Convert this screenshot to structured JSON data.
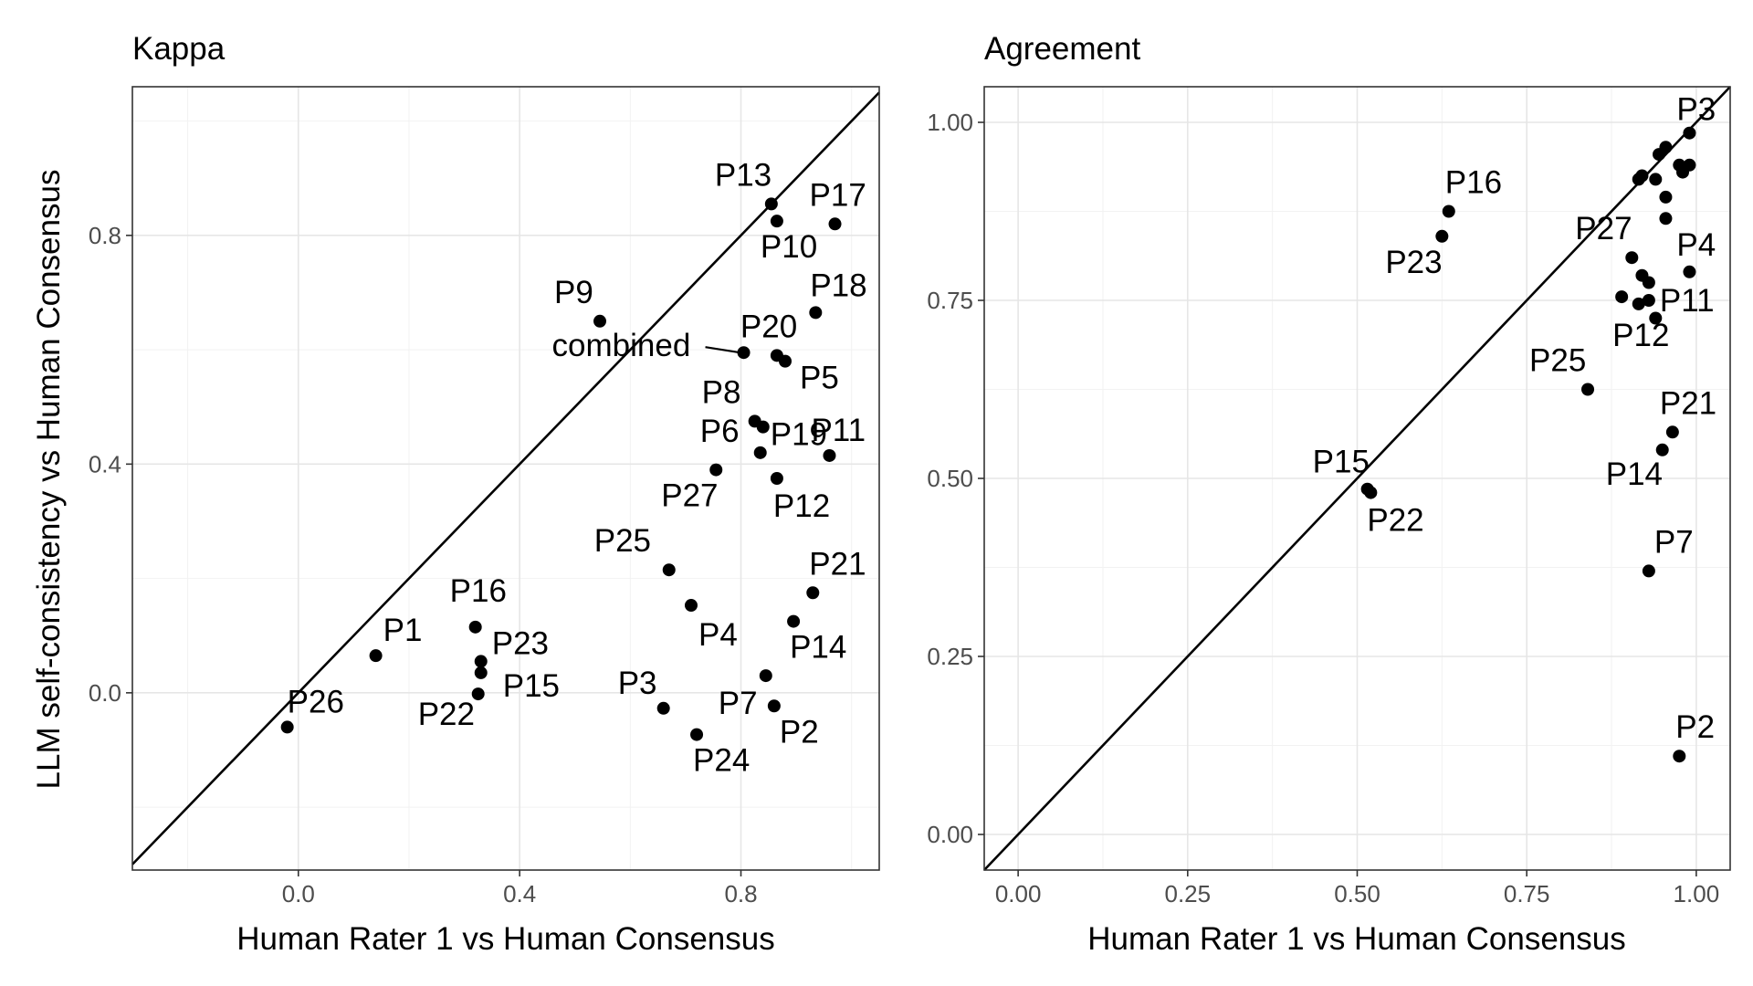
{
  "y_axis_title": "LLM self-consistency vs Human Consensus",
  "chart_data": [
    {
      "type": "scatter",
      "title": "Kappa",
      "xlabel": "Human Rater 1 vs Human Consensus",
      "xlim": [
        -0.3,
        1.05
      ],
      "ylim": [
        -0.31,
        1.06
      ],
      "xticks": [
        0.0,
        0.4,
        0.8
      ],
      "xtick_labels": [
        "0.0",
        "0.4",
        "0.8"
      ],
      "yticks": [
        0.0,
        0.4,
        0.8
      ],
      "ytick_labels": [
        "0.0",
        "0.4",
        "0.8"
      ],
      "grid": true,
      "reference_line": "y = x",
      "points": [
        {
          "label": "P26",
          "x": -0.02,
          "y": -0.06
        },
        {
          "label": "P1",
          "x": 0.14,
          "y": 0.065
        },
        {
          "label": "P16",
          "x": 0.32,
          "y": 0.115
        },
        {
          "label": "P23",
          "x": 0.33,
          "y": 0.055
        },
        {
          "label": "P15",
          "x": 0.33,
          "y": 0.035
        },
        {
          "label": "P22",
          "x": 0.325,
          "y": -0.002
        },
        {
          "label": "P9",
          "x": 0.545,
          "y": 0.65
        },
        {
          "label": "combined",
          "x": 0.805,
          "y": 0.595
        },
        {
          "label": "P3",
          "x": 0.66,
          "y": -0.027
        },
        {
          "label": "P24",
          "x": 0.72,
          "y": -0.073
        },
        {
          "label": "P25",
          "x": 0.67,
          "y": 0.215
        },
        {
          "label": "P4",
          "x": 0.71,
          "y": 0.153
        },
        {
          "label": "P27",
          "x": 0.755,
          "y": 0.39
        },
        {
          "label": "P6",
          "x": 0.835,
          "y": 0.42
        },
        {
          "label": "P8",
          "x": 0.825,
          "y": 0.475
        },
        {
          "label": "P19",
          "x": 0.84,
          "y": 0.465
        },
        {
          "label": "P12",
          "x": 0.865,
          "y": 0.375
        },
        {
          "label": "P11",
          "x": 0.96,
          "y": 0.415
        },
        {
          "label": "P7",
          "x": 0.845,
          "y": 0.03
        },
        {
          "label": "P2",
          "x": 0.86,
          "y": -0.023
        },
        {
          "label": "P14",
          "x": 0.895,
          "y": 0.125
        },
        {
          "label": "P21",
          "x": 0.93,
          "y": 0.175
        },
        {
          "label": "P20",
          "x": 0.865,
          "y": 0.59
        },
        {
          "label": "P5",
          "x": 0.88,
          "y": 0.58
        },
        {
          "label": "P18",
          "x": 0.935,
          "y": 0.665
        },
        {
          "label": "P13",
          "x": 0.855,
          "y": 0.855
        },
        {
          "label": "P10",
          "x": 0.865,
          "y": 0.825
        },
        {
          "label": "P17",
          "x": 0.97,
          "y": 0.82
        }
      ]
    },
    {
      "type": "scatter",
      "title": "Agreement",
      "xlabel": "Human Rater 1 vs Human Consensus",
      "xlim": [
        -0.05,
        1.05
      ],
      "ylim": [
        -0.05,
        1.05
      ],
      "xticks": [
        0.0,
        0.25,
        0.5,
        0.75,
        1.0
      ],
      "xtick_labels": [
        "0.00",
        "0.25",
        "0.50",
        "0.75",
        "1.00"
      ],
      "yticks": [
        0.0,
        0.25,
        0.5,
        0.75,
        1.0
      ],
      "ytick_labels": [
        "0.00",
        "0.25",
        "0.50",
        "0.75",
        "1.00"
      ],
      "grid": true,
      "reference_line": "y = x",
      "points": [
        {
          "label": "P15",
          "x": 0.515,
          "y": 0.485
        },
        {
          "label": "P22",
          "x": 0.52,
          "y": 0.48
        },
        {
          "label": "P16",
          "x": 0.635,
          "y": 0.875
        },
        {
          "label": "P23",
          "x": 0.625,
          "y": 0.84
        },
        {
          "label": "P25",
          "x": 0.84,
          "y": 0.625
        },
        {
          "label": "P27",
          "x": 0.905,
          "y": 0.81
        },
        {
          "label": "P12",
          "x": 0.89,
          "y": 0.755
        },
        {
          "label": "P11",
          "x": 0.93,
          "y": 0.75
        },
        {
          "label": "P4",
          "x": 0.99,
          "y": 0.79
        },
        {
          "label": "P21",
          "x": 0.965,
          "y": 0.565
        },
        {
          "label": "P14",
          "x": 0.95,
          "y": 0.54
        },
        {
          "label": "P7",
          "x": 0.93,
          "y": 0.37
        },
        {
          "label": "P2",
          "x": 0.975,
          "y": 0.11
        },
        {
          "label": "P3",
          "x": 0.99,
          "y": 0.985
        },
        {
          "label": "",
          "x": 0.945,
          "y": 0.955
        },
        {
          "label": "",
          "x": 0.955,
          "y": 0.965
        },
        {
          "label": "",
          "x": 0.915,
          "y": 0.92
        },
        {
          "label": "",
          "x": 0.92,
          "y": 0.925
        },
        {
          "label": "",
          "x": 0.94,
          "y": 0.92
        },
        {
          "label": "",
          "x": 0.975,
          "y": 0.94
        },
        {
          "label": "",
          "x": 0.99,
          "y": 0.94
        },
        {
          "label": "",
          "x": 0.98,
          "y": 0.93
        },
        {
          "label": "",
          "x": 0.955,
          "y": 0.895
        },
        {
          "label": "",
          "x": 0.955,
          "y": 0.865
        },
        {
          "label": "",
          "x": 0.92,
          "y": 0.785
        },
        {
          "label": "",
          "x": 0.93,
          "y": 0.775
        },
        {
          "label": "",
          "x": 0.915,
          "y": 0.745
        },
        {
          "label": "",
          "x": 0.94,
          "y": 0.725
        }
      ]
    }
  ]
}
